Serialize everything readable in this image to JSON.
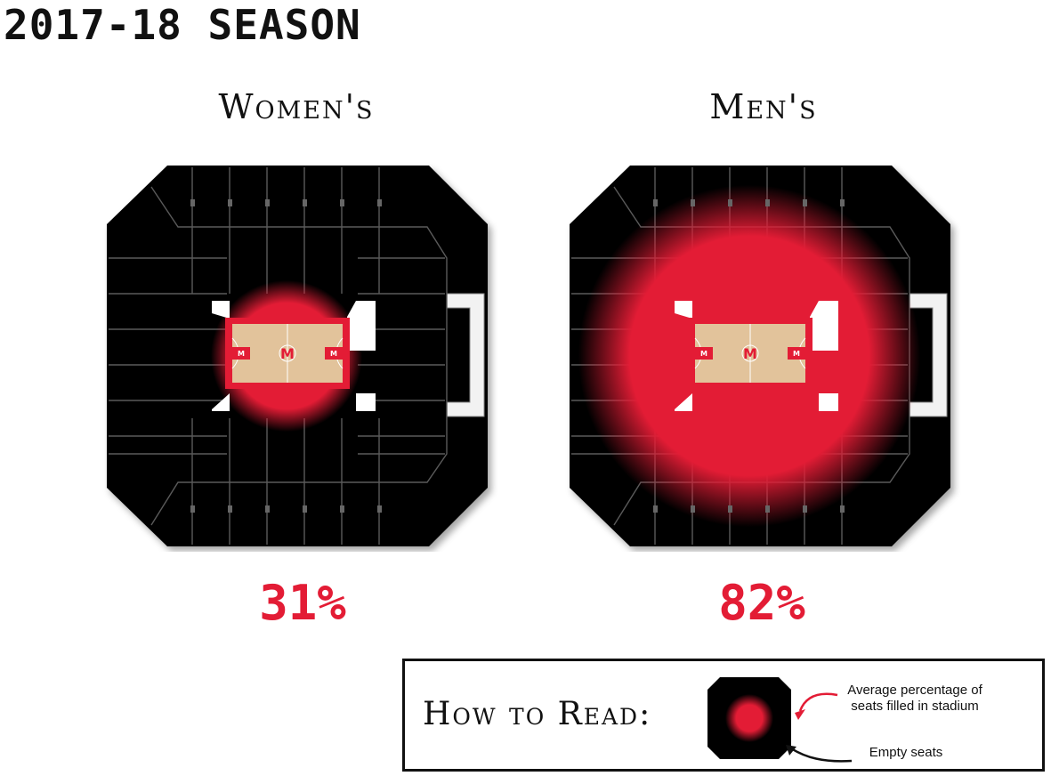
{
  "title": "2017-18 SEASON",
  "arenas": [
    {
      "label": "Women's",
      "percent_label": "31%",
      "fill_fraction": 0.31
    },
    {
      "label": "Men's",
      "percent_label": "82%",
      "fill_fraction": 0.82
    }
  ],
  "court": {
    "logo_letter": "M",
    "end_letter": "M"
  },
  "legend": {
    "heading": "How to Read:",
    "filled_note": "Average percentage of seats filled in stadium",
    "empty_note": "Empty seats"
  },
  "colors": {
    "accent": "#e31c35",
    "seats": "#000000",
    "court_wood": "#e2c39b",
    "background": "#ffffff"
  }
}
